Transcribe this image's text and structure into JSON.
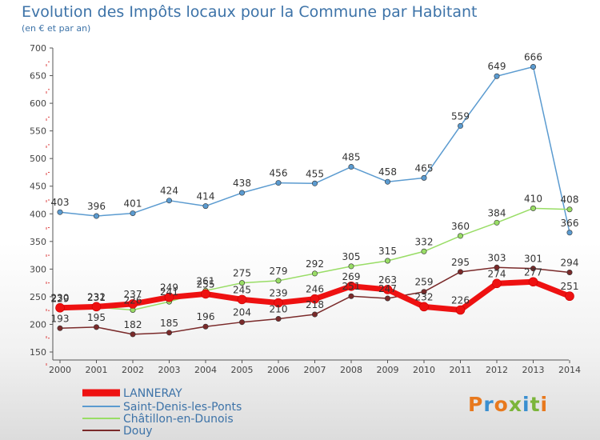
{
  "header": {
    "title": "Evolution des Impôts locaux pour la Commune par Habitant",
    "subtitle": "(en € et par an)"
  },
  "logo": {
    "text": "Proxiti",
    "colors": [
      "#e8791e",
      "#3a8fd0",
      "#e8791e",
      "#7bb53a",
      "#3a8fd0",
      "#7bb53a",
      "#e8791e"
    ]
  },
  "chart_data": {
    "type": "line",
    "title": "Evolution des Impôts locaux pour la Commune par Habitant",
    "subtitle": "(en € et par an)",
    "x": [
      "2000",
      "2001",
      "2002",
      "2003",
      "2004",
      "2005",
      "2006",
      "2007",
      "2008",
      "2009",
      "2010",
      "2011",
      "2012",
      "2013",
      "2014"
    ],
    "ylim": [
      150,
      700
    ],
    "yticks": [
      150,
      200,
      250,
      300,
      350,
      400,
      450,
      500,
      550,
      600,
      650,
      700
    ],
    "grid": false,
    "legend_position": "bottom-left",
    "series": [
      {
        "name": "LANNERAY",
        "color": "#ee1111",
        "width": 7,
        "values": [
          230,
          232,
          237,
          249,
          255,
          245,
          239,
          246,
          269,
          263,
          232,
          226,
          274,
          277,
          251
        ],
        "labels": [
          "230",
          "232",
          "237",
          "249",
          "255",
          "245",
          "239",
          "246",
          "269",
          "263",
          "232",
          "226",
          "274",
          "277",
          "251"
        ]
      },
      {
        "name": "Saint-Denis-les-Ponts",
        "color": "#5b9bd0",
        "width": 1.5,
        "values": [
          403,
          396,
          401,
          424,
          414,
          438,
          456,
          455,
          485,
          458,
          465,
          559,
          649,
          666,
          366
        ],
        "labels": [
          "403",
          "396",
          "401",
          "424",
          "414",
          "438",
          "456",
          "455",
          "485",
          "458",
          "465",
          "559",
          "649",
          "666",
          "366"
        ]
      },
      {
        "name": "Châtillon-en-Dunois",
        "color": "#99dd66",
        "width": 1.5,
        "values": [
          229,
          231,
          226,
          241,
          261,
          275,
          279,
          292,
          305,
          315,
          332,
          360,
          384,
          410,
          408
        ],
        "labels": [
          "229",
          "231",
          "226",
          "241",
          "261",
          "275",
          "279",
          "292",
          "305",
          "315",
          "332",
          "360",
          "384",
          "410",
          "408"
        ]
      },
      {
        "name": "Douy",
        "color": "#7a2a2a",
        "width": 1.5,
        "values": [
          193,
          195,
          182,
          185,
          196,
          204,
          210,
          218,
          251,
          247,
          259,
          295,
          303,
          301,
          294
        ],
        "labels": [
          "193",
          "195",
          "182",
          "185",
          "196",
          "204",
          "210",
          "218",
          "251",
          "247",
          "259",
          "295",
          "303",
          "301",
          "294"
        ]
      }
    ]
  }
}
